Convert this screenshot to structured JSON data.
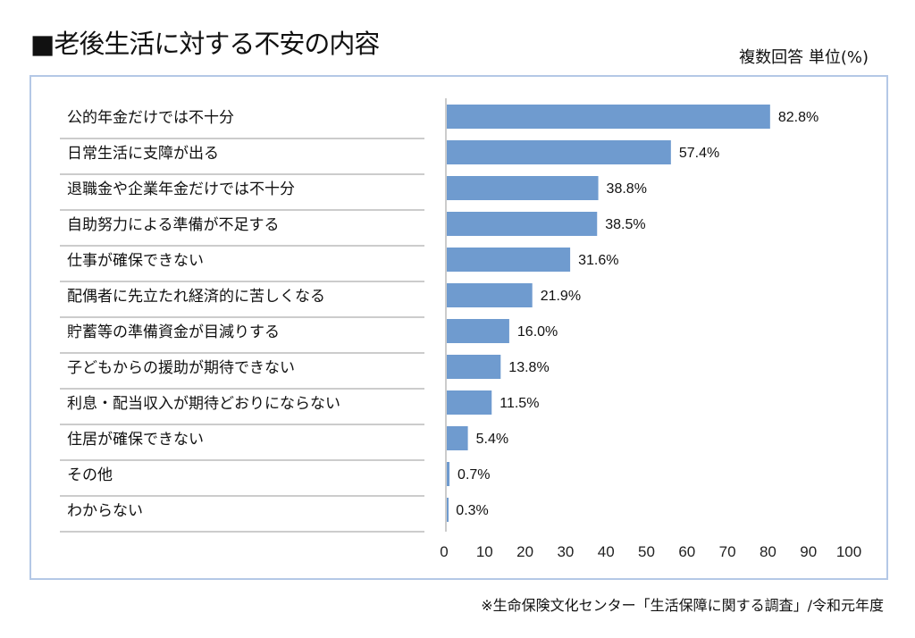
{
  "chart_data": {
    "type": "bar",
    "orientation": "horizontal",
    "title": "■老後生活に対する不安の内容",
    "subtitle": "複数回答 単位(%)",
    "source": "※生命保険文化センター「生活保障に関する調査」/令和元年度",
    "categories": [
      "公的年金だけでは不十分",
      "日常生活に支障が出る",
      "退職金や企業年金だけでは不十分",
      "自助努力による準備が不足する",
      "仕事が確保できない",
      "配偶者に先立たれ経済的に苦しくなる",
      "貯蓄等の準備資金が目減りする",
      "子どもからの援助が期待できない",
      "利息・配当収入が期待どおりにならない",
      "住居が確保できない",
      "その他",
      "わからない"
    ],
    "values": [
      82.8,
      57.4,
      38.8,
      38.5,
      31.6,
      21.9,
      16.0,
      13.8,
      11.5,
      5.4,
      0.7,
      0.3
    ],
    "value_labels": [
      "82.8%",
      "57.4%",
      "38.8%",
      "38.5%",
      "31.6%",
      "21.9%",
      "16.0%",
      "13.8%",
      "11.5%",
      "5.4%",
      "0.7%",
      "0.3%"
    ],
    "xlim": [
      0,
      100
    ],
    "xticks": [
      "0",
      "10",
      "20",
      "30",
      "40",
      "50",
      "60",
      "70",
      "80",
      "90",
      "100"
    ],
    "grid": false,
    "bar_color": "#6f9bcf"
  }
}
